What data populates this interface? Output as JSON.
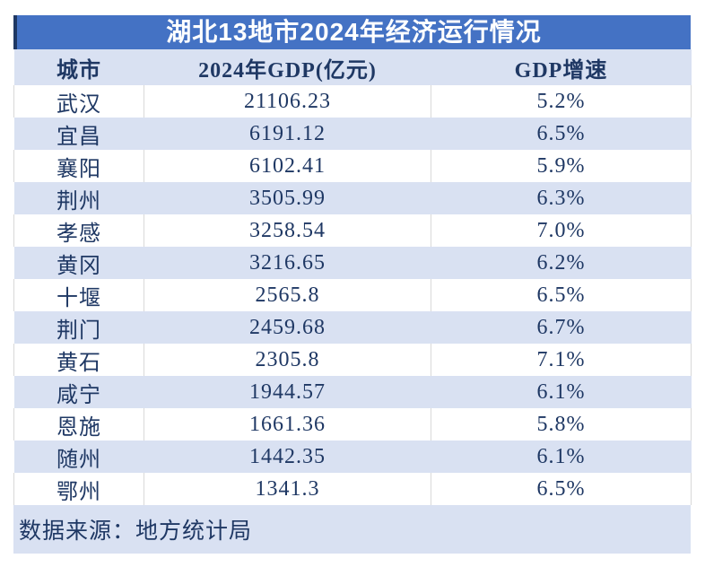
{
  "title": "湖北13地市2024年经济运行情况",
  "table": {
    "columns": [
      "城市",
      "2024年GDP(亿元)",
      "GDP增速"
    ],
    "rows": [
      [
        "武汉",
        "21106.23",
        "5.2%"
      ],
      [
        "宜昌",
        "6191.12",
        "6.5%"
      ],
      [
        "襄阳",
        "6102.41",
        "5.9%"
      ],
      [
        "荆州",
        "3505.99",
        "6.3%"
      ],
      [
        "孝感",
        "3258.54",
        "7.0%"
      ],
      [
        "黄冈",
        "3216.65",
        "6.2%"
      ],
      [
        "十堰",
        "2565.8",
        "6.5%"
      ],
      [
        "荆门",
        "2459.68",
        "6.7%"
      ],
      [
        "黄石",
        "2305.8",
        "7.1%"
      ],
      [
        "咸宁",
        "1944.57",
        "6.1%"
      ],
      [
        "恩施",
        "1661.36",
        "5.8%"
      ],
      [
        "随州",
        "1442.35",
        "6.1%"
      ],
      [
        "鄂州",
        "1341.3",
        "6.5%"
      ]
    ]
  },
  "footer": {
    "source": "数据来源：地方统计局"
  },
  "colors": {
    "accent": "#4472C4",
    "title_stripe": "#1F3864",
    "row_alt": "#D9E1F2",
    "text": "#1F3864",
    "grid": "#D9D9D9",
    "title_text": "#FFFFFF"
  },
  "chart_data": {
    "type": "table",
    "title": "湖北13地市2024年经济运行情况",
    "columns": [
      "城市",
      "2024年GDP(亿元)",
      "GDP增速"
    ],
    "cities": [
      "武汉",
      "宜昌",
      "襄阳",
      "荆州",
      "孝感",
      "黄冈",
      "十堰",
      "荆门",
      "黄石",
      "咸宁",
      "恩施",
      "随州",
      "鄂州"
    ],
    "gdp_yi_yuan": [
      21106.23,
      6191.12,
      6102.41,
      3505.99,
      3258.54,
      3216.65,
      2565.8,
      2459.68,
      2305.8,
      1944.57,
      1661.36,
      1442.35,
      1341.3
    ],
    "gdp_growth_pct": [
      5.2,
      6.5,
      5.9,
      6.3,
      7.0,
      6.2,
      6.5,
      6.7,
      7.1,
      6.1,
      5.8,
      6.1,
      6.5
    ],
    "source_note": "数据来源：地方统计局"
  }
}
